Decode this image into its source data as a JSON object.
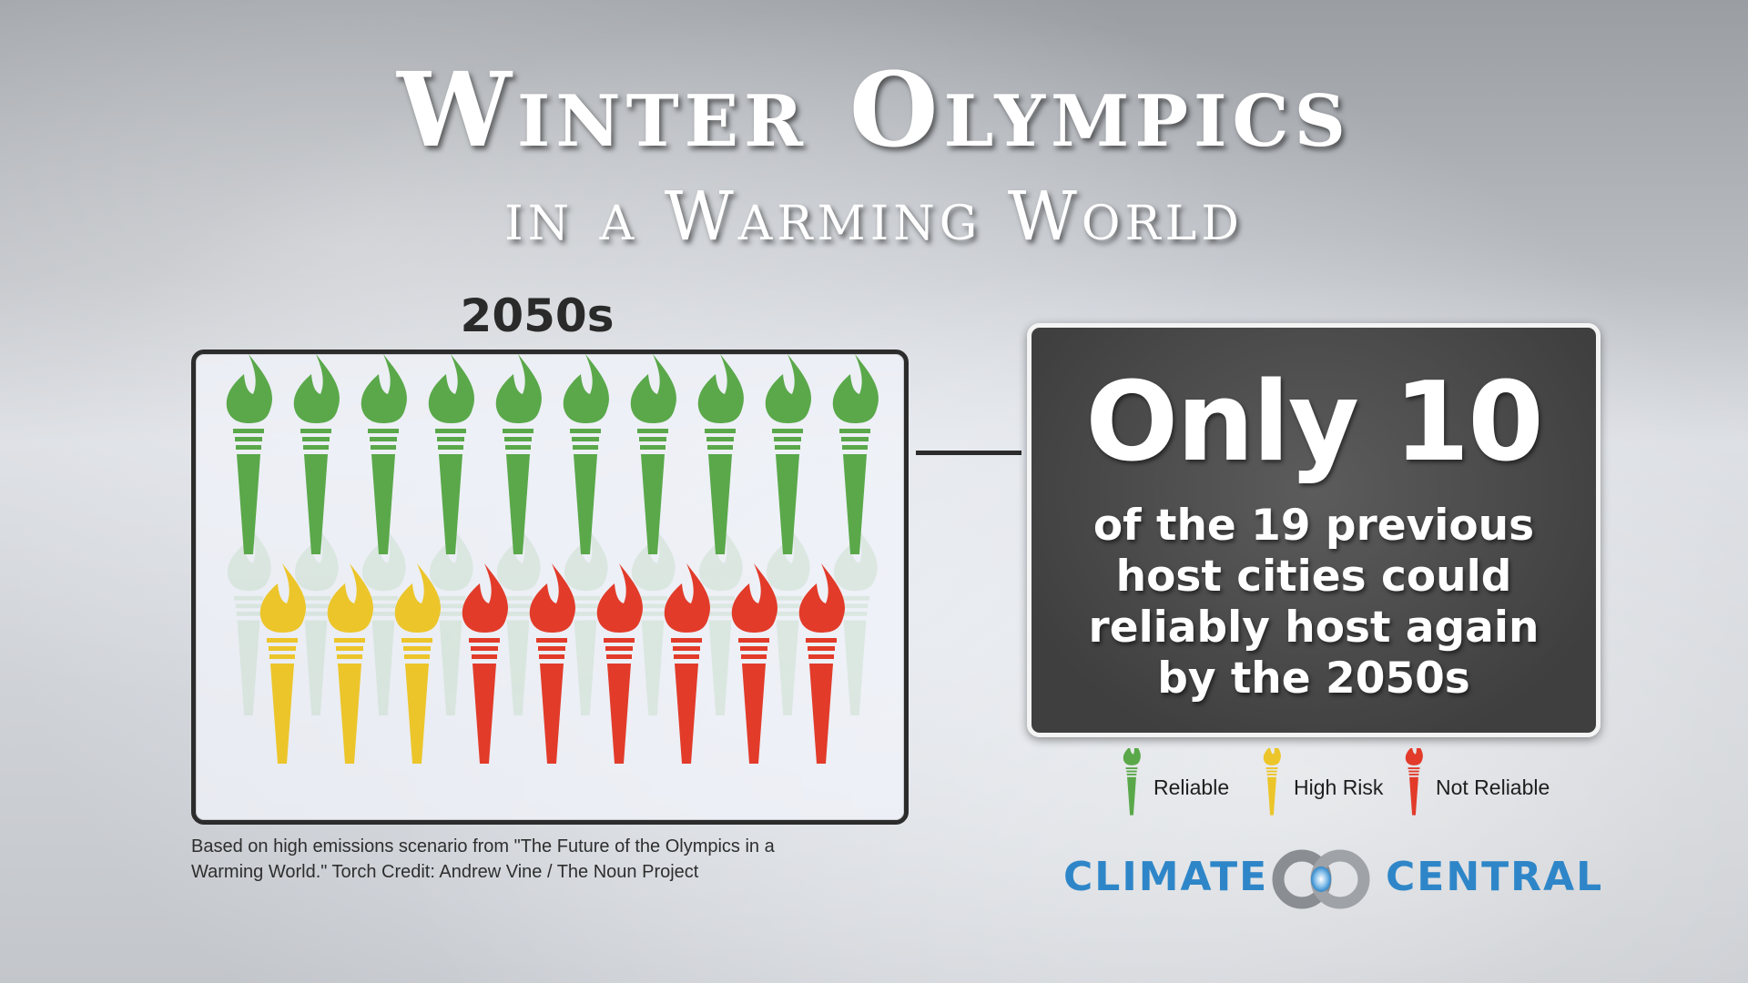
{
  "title": "Winter Olympics",
  "subtitle": "in a Warming World",
  "decade": "2050s",
  "stat": {
    "headline": "Only 10",
    "lines": [
      "of the 19 previous",
      "host cities could",
      "reliably host again",
      "by the 2050s"
    ]
  },
  "torches": {
    "row1": [
      "reliable",
      "reliable",
      "reliable",
      "reliable",
      "reliable",
      "reliable",
      "reliable",
      "reliable",
      "reliable",
      "reliable"
    ],
    "row2": [
      "high-risk",
      "high-risk",
      "high-risk",
      "not-reliable",
      "not-reliable",
      "not-reliable",
      "not-reliable",
      "not-reliable",
      "not-reliable"
    ]
  },
  "colors": {
    "reliable": "#5aa84a",
    "high-risk": "#ecc52a",
    "not-reliable": "#e23b2a"
  },
  "legend": [
    {
      "key": "reliable",
      "label": "Reliable"
    },
    {
      "key": "high-risk",
      "label": "High Risk"
    },
    {
      "key": "not-reliable",
      "label": "Not Reliable"
    }
  ],
  "source": {
    "line1": "Based on high emissions scenario from \"The Future of the Olympics in a",
    "line2": "Warming World.\"  Torch Credit: Andrew Vine / The Noun Project"
  },
  "logo": {
    "word1": "CLIMATE",
    "word2": "CENTRAL"
  }
}
